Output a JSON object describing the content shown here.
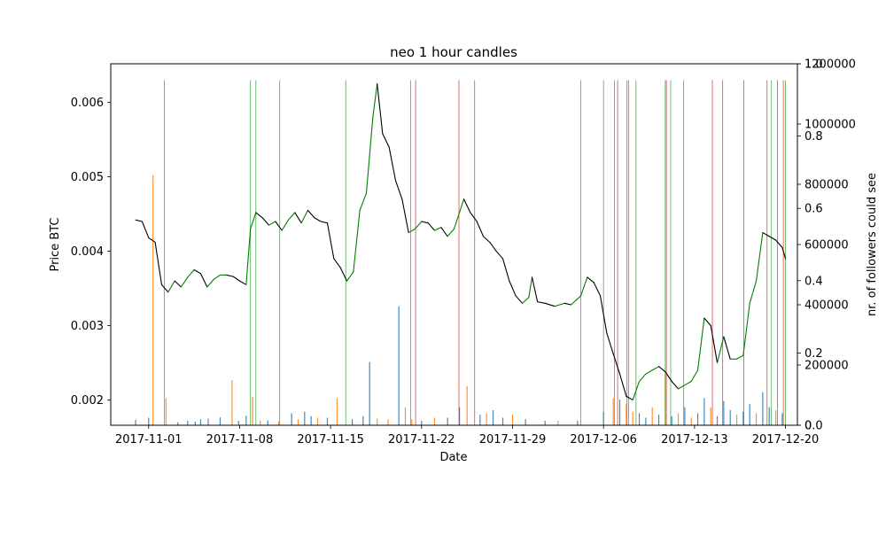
{
  "chart_data": {
    "type": "line",
    "title": "neo 1 hour candles",
    "xlabel": "Date",
    "ylabel": "Price BTC",
    "ylabel_right": "nr. of followers could see",
    "xlim": [
      "2017-10-29T02:00",
      "2017-12-20T22:00"
    ],
    "ylim": [
      0.00166,
      0.00652
    ],
    "ylim_right_followers": [
      0,
      1200000
    ],
    "ylim_right_fraction": [
      0,
      1.0
    ],
    "x_ticks": [
      "2017-11-01",
      "2017-11-08",
      "2017-11-15",
      "2017-11-22",
      "2017-11-29",
      "2017-12-06",
      "2017-12-13",
      "2017-12-20"
    ],
    "y_ticks": [
      0.002,
      0.003,
      0.004,
      0.005,
      0.006
    ],
    "y_ticks_right_followers": [
      0,
      200000,
      400000,
      600000,
      800000,
      1000000,
      1200000
    ],
    "y_ticks_right_fraction": [
      0.0,
      0.2,
      0.4,
      0.6,
      0.8,
      1.0
    ],
    "y_ticks_right_followers_labels": [
      "0",
      "200000",
      "400000",
      "600000",
      "800000",
      "1000000",
      "1200000"
    ],
    "y_ticks_right_fraction_labels": [
      "0.0",
      "0.2",
      "0.4",
      "0.6",
      "0.8",
      "1.0"
    ],
    "grid": false,
    "price_series": {
      "color_up": "#008000",
      "color_down": "#000000",
      "points": [
        [
          "2017-10-31T00:00",
          0.00442
        ],
        [
          "2017-10-31T12:00",
          0.0044
        ],
        [
          "2017-11-01T00:00",
          0.00418
        ],
        [
          "2017-11-01T12:00",
          0.00412
        ],
        [
          "2017-11-02T00:00",
          0.00355
        ],
        [
          "2017-11-02T12:00",
          0.00345
        ],
        [
          "2017-11-03T00:00",
          0.0036
        ],
        [
          "2017-11-03T12:00",
          0.00352
        ],
        [
          "2017-11-04T00:00",
          0.00365
        ],
        [
          "2017-11-04T12:00",
          0.00375
        ],
        [
          "2017-11-05T00:00",
          0.0037
        ],
        [
          "2017-11-05T12:00",
          0.00352
        ],
        [
          "2017-11-06T00:00",
          0.00362
        ],
        [
          "2017-11-06T12:00",
          0.00368
        ],
        [
          "2017-11-07T00:00",
          0.00368
        ],
        [
          "2017-11-07T12:00",
          0.00366
        ],
        [
          "2017-11-08T00:00",
          0.0036
        ],
        [
          "2017-11-08T12:00",
          0.00355
        ],
        [
          "2017-11-08T20:00",
          0.0043
        ],
        [
          "2017-11-09T06:00",
          0.00452
        ],
        [
          "2017-11-09T18:00",
          0.00445
        ],
        [
          "2017-11-10T06:00",
          0.00435
        ],
        [
          "2017-11-10T18:00",
          0.0044
        ],
        [
          "2017-11-11T06:00",
          0.00428
        ],
        [
          "2017-11-11T18:00",
          0.00442
        ],
        [
          "2017-11-12T06:00",
          0.00452
        ],
        [
          "2017-11-12T18:00",
          0.00438
        ],
        [
          "2017-11-13T06:00",
          0.00455
        ],
        [
          "2017-11-13T18:00",
          0.00445
        ],
        [
          "2017-11-14T06:00",
          0.0044
        ],
        [
          "2017-11-14T18:00",
          0.00438
        ],
        [
          "2017-11-15T06:00",
          0.0039
        ],
        [
          "2017-11-15T18:00",
          0.00378
        ],
        [
          "2017-11-16T06:00",
          0.0036
        ],
        [
          "2017-11-16T18:00",
          0.00372
        ],
        [
          "2017-11-17T06:00",
          0.00455
        ],
        [
          "2017-11-17T18:00",
          0.00478
        ],
        [
          "2017-11-18T06:00",
          0.0058
        ],
        [
          "2017-11-18T14:00",
          0.00625
        ],
        [
          "2017-11-19T00:00",
          0.00558
        ],
        [
          "2017-11-19T12:00",
          0.0054
        ],
        [
          "2017-11-20T00:00",
          0.00495
        ],
        [
          "2017-11-20T12:00",
          0.0047
        ],
        [
          "2017-11-21T00:00",
          0.00425
        ],
        [
          "2017-11-21T12:00",
          0.0043
        ],
        [
          "2017-11-22T00:00",
          0.0044
        ],
        [
          "2017-11-22T12:00",
          0.00438
        ],
        [
          "2017-11-23T00:00",
          0.00428
        ],
        [
          "2017-11-23T12:00",
          0.00432
        ],
        [
          "2017-11-24T00:00",
          0.0042
        ],
        [
          "2017-11-24T12:00",
          0.0043
        ],
        [
          "2017-11-25T06:00",
          0.0047
        ],
        [
          "2017-11-25T18:00",
          0.00452
        ],
        [
          "2017-11-26T06:00",
          0.0044
        ],
        [
          "2017-11-26T18:00",
          0.0042
        ],
        [
          "2017-11-27T06:00",
          0.00412
        ],
        [
          "2017-11-27T18:00",
          0.004
        ],
        [
          "2017-11-28T06:00",
          0.0039
        ],
        [
          "2017-11-28T18:00",
          0.0036
        ],
        [
          "2017-11-29T06:00",
          0.0034
        ],
        [
          "2017-11-29T18:00",
          0.0033
        ],
        [
          "2017-11-30T06:00",
          0.00338
        ],
        [
          "2017-11-30T12:00",
          0.00365
        ],
        [
          "2017-11-30T22:00",
          0.00332
        ],
        [
          "2017-12-01T12:00",
          0.0033
        ],
        [
          "2017-12-02T06:00",
          0.00326
        ],
        [
          "2017-12-03T00:00",
          0.0033
        ],
        [
          "2017-12-03T12:00",
          0.00328
        ],
        [
          "2017-12-04T06:00",
          0.0034
        ],
        [
          "2017-12-04T18:00",
          0.00365
        ],
        [
          "2017-12-05T06:00",
          0.00358
        ],
        [
          "2017-12-05T18:00",
          0.0034
        ],
        [
          "2017-12-06T06:00",
          0.0029
        ],
        [
          "2017-12-06T18:00",
          0.00262
        ],
        [
          "2017-12-07T06:00",
          0.00235
        ],
        [
          "2017-12-07T18:00",
          0.00205
        ],
        [
          "2017-12-08T06:00",
          0.002
        ],
        [
          "2017-12-08T18:00",
          0.00225
        ],
        [
          "2017-12-09T06:00",
          0.00235
        ],
        [
          "2017-12-09T18:00",
          0.0024
        ],
        [
          "2017-12-10T06:00",
          0.00245
        ],
        [
          "2017-12-10T18:00",
          0.00238
        ],
        [
          "2017-12-11T06:00",
          0.00225
        ],
        [
          "2017-12-11T18:00",
          0.00215
        ],
        [
          "2017-12-12T06:00",
          0.0022
        ],
        [
          "2017-12-12T18:00",
          0.00225
        ],
        [
          "2017-12-13T06:00",
          0.0024
        ],
        [
          "2017-12-13T18:00",
          0.0031
        ],
        [
          "2017-12-14T06:00",
          0.003
        ],
        [
          "2017-12-14T18:00",
          0.0025
        ],
        [
          "2017-12-15T06:00",
          0.00285
        ],
        [
          "2017-12-15T18:00",
          0.00255
        ],
        [
          "2017-12-16T06:00",
          0.00255
        ],
        [
          "2017-12-16T18:00",
          0.0026
        ],
        [
          "2017-12-17T06:00",
          0.0033
        ],
        [
          "2017-12-17T18:00",
          0.0036
        ],
        [
          "2017-12-18T06:00",
          0.00425
        ],
        [
          "2017-12-18T18:00",
          0.0042
        ],
        [
          "2017-12-19T06:00",
          0.00415
        ],
        [
          "2017-12-19T18:00",
          0.00405
        ],
        [
          "2017-12-20T00:00",
          0.0039
        ]
      ]
    },
    "signal_lines": {
      "buy_color": "#2ca02c",
      "sell_color": "#d62728",
      "buy": [
        "2017-11-02T05:00",
        "2017-11-08T20:00",
        "2017-11-09T06:00",
        "2017-11-11T02:00",
        "2017-11-16T04:00",
        "2017-11-21T04:00",
        "2017-12-04T06:00",
        "2017-12-06T00:00",
        "2017-12-06T20:00",
        "2017-12-07T19:00",
        "2017-12-08T12:00",
        "2017-12-10T18:00",
        "2017-12-11T04:00",
        "2017-12-12T04:00",
        "2017-12-18T22:00",
        "2017-12-20T00:00"
      ],
      "sell": [
        "2017-11-21T13:00",
        "2017-11-24T21:00",
        "2017-11-26T02:00",
        "2017-12-07T02:00",
        "2017-12-07T22:00",
        "2017-12-10T20:00",
        "2017-12-14T09:00",
        "2017-12-15T04:00",
        "2017-12-16T19:00",
        "2017-12-18T14:00",
        "2017-12-19T09:00",
        "2017-12-19T20:00"
      ]
    },
    "follower_bars": {
      "colors": [
        "#1f77b4",
        "#ff7f0e"
      ],
      "values": [
        [
          "2017-10-31T00:00",
          0,
          18000
        ],
        [
          "2017-11-01T00:00",
          0,
          25000
        ],
        [
          "2017-11-01T08:00",
          1,
          830000
        ],
        [
          "2017-11-02T08:00",
          1,
          90000
        ],
        [
          "2017-11-03T06:00",
          0,
          10000
        ],
        [
          "2017-11-04T00:00",
          0,
          15000
        ],
        [
          "2017-11-04T14:00",
          0,
          12000
        ],
        [
          "2017-11-05T00:00",
          0,
          20000
        ],
        [
          "2017-11-05T14:00",
          0,
          22000
        ],
        [
          "2017-11-06T12:00",
          0,
          26000
        ],
        [
          "2017-11-07T10:00",
          1,
          150000
        ],
        [
          "2017-11-07T22:00",
          0,
          15000
        ],
        [
          "2017-11-08T12:00",
          0,
          32000
        ],
        [
          "2017-11-09T00:00",
          1,
          95000
        ],
        [
          "2017-11-09T14:00",
          1,
          15000
        ],
        [
          "2017-11-10T04:00",
          0,
          16000
        ],
        [
          "2017-11-11T00:00",
          1,
          14000
        ],
        [
          "2017-11-12T00:00",
          0,
          40000
        ],
        [
          "2017-11-12T12:00",
          1,
          20000
        ],
        [
          "2017-11-13T00:00",
          0,
          45000
        ],
        [
          "2017-11-13T12:00",
          0,
          30000
        ],
        [
          "2017-11-14T00:00",
          1,
          25000
        ],
        [
          "2017-11-14T18:00",
          0,
          25000
        ],
        [
          "2017-11-15T12:00",
          1,
          90000
        ],
        [
          "2017-11-16T16:00",
          0,
          20000
        ],
        [
          "2017-11-17T12:00",
          0,
          30000
        ],
        [
          "2017-11-18T00:00",
          0,
          210000
        ],
        [
          "2017-11-18T14:00",
          1,
          22000
        ],
        [
          "2017-11-19T10:00",
          1,
          20000
        ],
        [
          "2017-11-20T06:00",
          0,
          395000
        ],
        [
          "2017-11-20T18:00",
          1,
          60000
        ],
        [
          "2017-11-21T06:00",
          1,
          20000
        ],
        [
          "2017-11-22T00:00",
          0,
          15000
        ],
        [
          "2017-11-23T00:00",
          1,
          25000
        ],
        [
          "2017-11-24T00:00",
          0,
          25000
        ],
        [
          "2017-11-24T22:00",
          0,
          60000
        ],
        [
          "2017-11-25T12:00",
          1,
          130000
        ],
        [
          "2017-11-26T12:00",
          0,
          35000
        ],
        [
          "2017-11-27T00:00",
          1,
          40000
        ],
        [
          "2017-11-27T12:00",
          0,
          50000
        ],
        [
          "2017-11-28T06:00",
          0,
          25000
        ],
        [
          "2017-11-29T00:00",
          1,
          35000
        ],
        [
          "2017-11-30T00:00",
          0,
          20000
        ],
        [
          "2017-12-01T12:00",
          0,
          15000
        ],
        [
          "2017-12-02T12:00",
          1,
          15000
        ],
        [
          "2017-12-04T00:00",
          0,
          15000
        ],
        [
          "2017-12-06T00:00",
          0,
          45000
        ],
        [
          "2017-12-06T18:00",
          1,
          90000
        ],
        [
          "2017-12-07T06:00",
          0,
          85000
        ],
        [
          "2017-12-07T18:00",
          1,
          70000
        ],
        [
          "2017-12-08T06:00",
          1,
          45000
        ],
        [
          "2017-12-08T18:00",
          0,
          40000
        ],
        [
          "2017-12-09T06:00",
          0,
          25000
        ],
        [
          "2017-12-09T18:00",
          1,
          60000
        ],
        [
          "2017-12-10T06:00",
          0,
          35000
        ],
        [
          "2017-12-10T18:00",
          1,
          170000
        ],
        [
          "2017-12-11T06:00",
          0,
          30000
        ],
        [
          "2017-12-11T18:00",
          1,
          40000
        ],
        [
          "2017-12-12T06:00",
          0,
          60000
        ],
        [
          "2017-12-12T18:00",
          1,
          25000
        ],
        [
          "2017-12-13T06:00",
          0,
          40000
        ],
        [
          "2017-12-13T18:00",
          0,
          90000
        ],
        [
          "2017-12-14T06:00",
          1,
          60000
        ],
        [
          "2017-12-14T18:00",
          0,
          30000
        ],
        [
          "2017-12-15T06:00",
          0,
          80000
        ],
        [
          "2017-12-15T18:00",
          0,
          50000
        ],
        [
          "2017-12-16T06:00",
          1,
          35000
        ],
        [
          "2017-12-16T18:00",
          0,
          45000
        ],
        [
          "2017-12-17T06:00",
          0,
          70000
        ],
        [
          "2017-12-17T18:00",
          1,
          40000
        ],
        [
          "2017-12-18T06:00",
          0,
          110000
        ],
        [
          "2017-12-18T18:00",
          0,
          60000
        ],
        [
          "2017-12-19T06:00",
          1,
          50000
        ],
        [
          "2017-12-19T18:00",
          0,
          40000
        ]
      ]
    }
  }
}
